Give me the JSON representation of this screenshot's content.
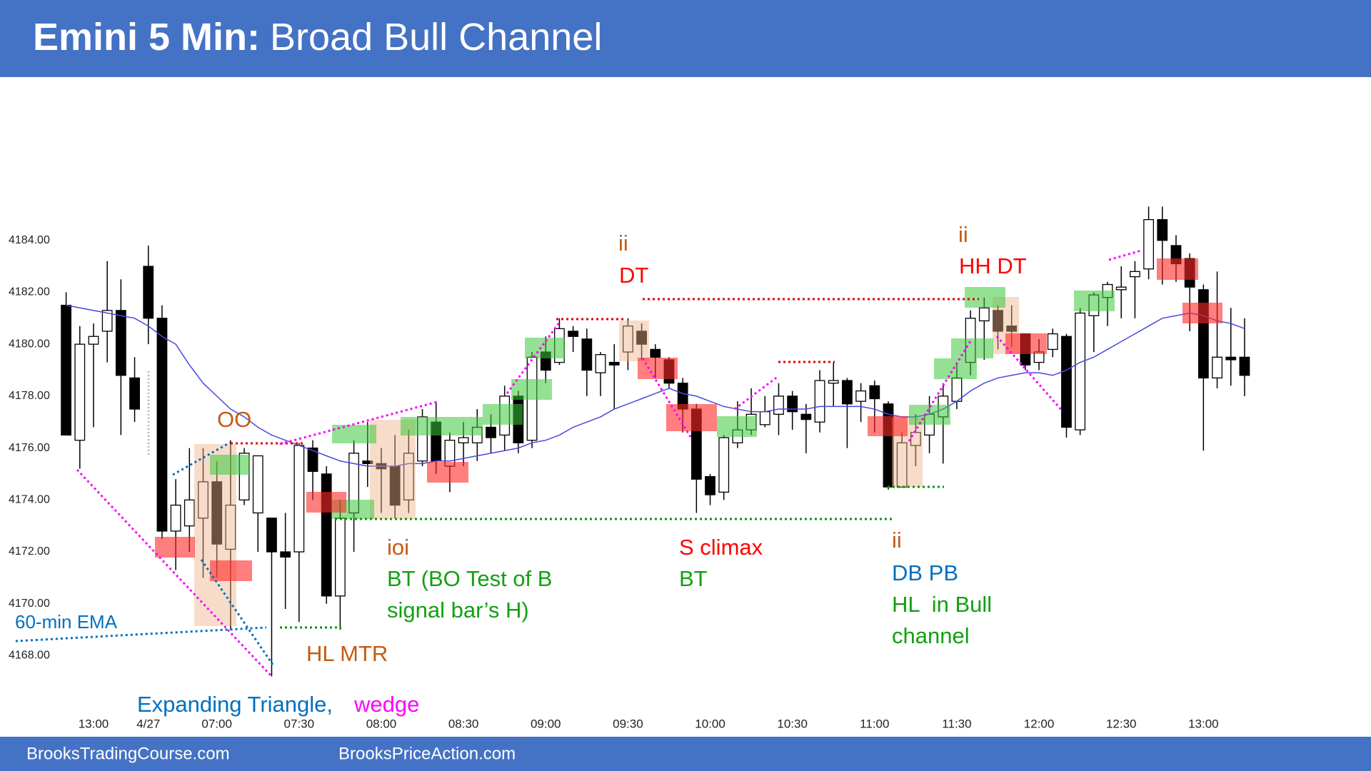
{
  "chart_data": {
    "type": "candlestick",
    "title": "Emini 5 Min:",
    "subtitle": "Broad Bull Channel",
    "footer": [
      "BrooksTradingCourse.com",
      "BrooksPriceAction.com"
    ],
    "categories": [
      null,
      null,
      "13:00",
      null,
      null,
      null,
      "4/27",
      null,
      null,
      null,
      null,
      "07:00",
      null,
      null,
      null,
      null,
      null,
      "07:30",
      null,
      null,
      null,
      null,
      null,
      "08:00",
      null,
      null,
      null,
      null,
      null,
      "08:30",
      null,
      null,
      null,
      null,
      null,
      "09:00",
      null,
      null,
      null,
      null,
      null,
      "09:30",
      null,
      null,
      null,
      null,
      null,
      "10:00",
      null,
      null,
      null,
      null,
      null,
      "10:30",
      null,
      null,
      null,
      null,
      null,
      "11:00",
      null,
      null,
      null,
      null,
      null,
      "11:30",
      null,
      null,
      null,
      null,
      null,
      "12:00",
      null,
      null,
      null,
      null,
      null,
      "12:30",
      null,
      null,
      null,
      null,
      null,
      "13:00",
      null,
      null,
      null
    ],
    "open": [
      4181.5,
      4176.3,
      4180,
      4180.5,
      4181.3,
      4178.7,
      4183,
      4181,
      4172.8,
      4173,
      4173.3,
      4174.7,
      4172.1,
      4174,
      4173.5,
      4173.3,
      4172,
      4172,
      4176,
      4175,
      4170.3,
      4173.5,
      4175.5,
      4175.4,
      4175.3,
      4174,
      4175.5,
      4177,
      4175.3,
      4176.2,
      4176.2,
      4176.8,
      4176.5,
      4178,
      4176.3,
      4179.7,
      4179.3,
      4180.5,
      4180.2,
      4178.9,
      4179.3,
      4179.7,
      4180.5,
      4179.8,
      4179.4,
      4178.5,
      4177.5,
      4174.9,
      4174.3,
      4176.2,
      4176.7,
      4176.9,
      4177.3,
      4178,
      4177.3,
      4177,
      4178.5,
      4178.6,
      4177.8,
      4178.4,
      4177.7,
      4174.5,
      4176.1,
      4176.5,
      4177.2,
      4177.8,
      4179.3,
      4180.9,
      4181.3,
      4180.7,
      4180.4,
      4179.3,
      4179.8,
      4180.3,
      4176.7,
      4181.1,
      4181.8,
      4182.1,
      4182.6,
      4182.9,
      4184.8,
      4183.8,
      4183.3,
      4182.1,
      4178.7,
      4179.5,
      4179.5
    ],
    "high": [
      4182,
      4180.7,
      4180.8,
      4183.2,
      4182.5,
      4179.5,
      4183.8,
      4181.5,
      4174.8,
      4176,
      4176,
      4175.5,
      4176.3,
      4176,
      4175.7,
      4173.3,
      4173.5,
      4176.2,
      4176.3,
      4175.3,
      4174,
      4176.3,
      4177,
      4176,
      4176.5,
      4176.7,
      4177.5,
      4177.8,
      4176.6,
      4177,
      4177.5,
      4177.3,
      4178.4,
      4178.2,
      4179.7,
      4180.3,
      4181,
      4180.7,
      4180.6,
      4179.7,
      4180,
      4181,
      4180.8,
      4180,
      4179.5,
      4178.7,
      4177.7,
      4175,
      4176.5,
      4177.8,
      4178.3,
      4178,
      4178.5,
      4178.2,
      4177.7,
      4179,
      4179.3,
      4178.7,
      4178.5,
      4178.6,
      4177.8,
      4176.6,
      4177.3,
      4178,
      4178.5,
      4179.3,
      4181.3,
      4181.8,
      4181.5,
      4181.5,
      4180.4,
      4180.2,
      4180.6,
      4180.4,
      4181.4,
      4182,
      4182.4,
      4183,
      4183.2,
      4185.3,
      4185.3,
      4184.2,
      4183.5,
      4182.3,
      4182.8,
      4181.4,
      4181
    ],
    "low": [
      4176.5,
      4175.2,
      4176.8,
      4179.3,
      4176.5,
      4177,
      4180,
      4172.5,
      4171.3,
      4172,
      4171,
      4171,
      4169,
      4173.8,
      4172,
      4167.2,
      4169.8,
      4169.3,
      4174,
      4170,
      4169,
      4172,
      4174.5,
      4173.5,
      4173.3,
      4173.5,
      4175.3,
      4175,
      4174.3,
      4175.3,
      4175.5,
      4175.8,
      4175.9,
      4175.8,
      4176,
      4178.5,
      4179.2,
      4179.7,
      4178,
      4178,
      4177.5,
      4179,
      4179.4,
      4178.7,
      4178.3,
      4176.6,
      4173.5,
      4173.8,
      4174,
      4176,
      4176.5,
      4176.8,
      4176.5,
      4176.7,
      4175.8,
      4176.6,
      4177.6,
      4176,
      4177,
      4176.6,
      4174.4,
      4174.5,
      4175.3,
      4175.8,
      4175.4,
      4177.5,
      4178.8,
      4179.4,
      4179.8,
      4179.9,
      4179,
      4179,
      4179.5,
      4176.4,
      4176.5,
      4179.7,
      4180.7,
      4181,
      4181,
      4182.5,
      4182.3,
      4182.4,
      4180.5,
      4175.9,
      4178.3,
      4178.4,
      4178
    ],
    "close": [
      4176.5,
      4180,
      4180.3,
      4181.3,
      4178.8,
      4177.5,
      4181,
      4172.8,
      4173.8,
      4174,
      4174.7,
      4172.3,
      4173.8,
      4175.8,
      4175.7,
      4172,
      4171.8,
      4176.1,
      4175.1,
      4170.3,
      4173.3,
      4175.8,
      4175.4,
      4175.2,
      4173.8,
      4175.8,
      4177.2,
      4175.5,
      4176.3,
      4176.4,
      4176.8,
      4176.4,
      4178,
      4176.2,
      4179.5,
      4179,
      4180.6,
      4180.3,
      4179,
      4179.6,
      4179.2,
      4180.7,
      4180,
      4179.5,
      4178.5,
      4177.5,
      4174.8,
      4174.2,
      4176.4,
      4176.7,
      4177.3,
      4177.4,
      4178,
      4177.4,
      4177.1,
      4178.6,
      4178.6,
      4177.7,
      4178.2,
      4177.9,
      4174.5,
      4176.2,
      4176.6,
      4177.3,
      4178,
      4178.7,
      4181,
      4181.4,
      4180.5,
      4180.5,
      4179.2,
      4179.7,
      4180.4,
      4176.8,
      4181.2,
      4181.9,
      4182.3,
      4182.2,
      4182.8,
      4184.8,
      4184,
      4183.1,
      4182.2,
      4178.7,
      4179.5,
      4179.4,
      4178.8
    ],
    "ema": {
      "name": "60-min EMA",
      "color": "#4848e0",
      "values": [
        4181.5,
        4181.4,
        4181.3,
        4181.2,
        4181.1,
        4181.0,
        4180.7,
        4180.3,
        4180.0,
        4179.2,
        4178.5,
        4178.0,
        4177.5,
        4177.2,
        4176.8,
        4176.5,
        4176.3,
        4176.1,
        4175.9,
        4175.7,
        4175.5,
        4175.4,
        4175.3,
        4175.3,
        4175.3,
        4175.4,
        4175.4,
        4175.5,
        4175.5,
        4175.6,
        4175.7,
        4175.8,
        4175.9,
        4176.0,
        4176.2,
        4176.3,
        4176.5,
        4176.8,
        4177.0,
        4177.2,
        4177.5,
        4177.7,
        4177.9,
        4178.1,
        4178.3,
        4178.1,
        4178.0,
        4177.8,
        4177.6,
        4177.5,
        4177.4,
        4177.4,
        4177.5,
        4177.5,
        4177.5,
        4177.6,
        4177.6,
        4177.6,
        4177.6,
        4177.5,
        4177.3,
        4177.2,
        4177.2,
        4177.3,
        4177.5,
        4177.8,
        4178.2,
        4178.5,
        4178.7,
        4178.8,
        4178.9,
        4178.9,
        4178.8,
        4179.0,
        4179.3,
        4179.5,
        4179.8,
        4180.1,
        4180.4,
        4180.7,
        4181.0,
        4181.1,
        4181.2,
        4181.1,
        4180.9,
        4180.8,
        4180.6
      ]
    },
    "up_color": "#ffffff",
    "down_color": "#000000",
    "ylim": [
      4166.5,
      4186
    ],
    "yticks": [
      {
        "value": 4168,
        "label": "4168.00"
      },
      {
        "value": 4170,
        "label": "4170.00"
      },
      {
        "value": 4172,
        "label": "4172.00"
      },
      {
        "value": 4174,
        "label": "4174.00"
      },
      {
        "value": 4176,
        "label": "4176.00"
      },
      {
        "value": 4178,
        "label": "4178.00"
      },
      {
        "value": 4180,
        "label": "4180.00"
      },
      {
        "value": 4182,
        "label": "4182.00"
      },
      {
        "value": 4184,
        "label": "4184.00"
      }
    ],
    "grid": false,
    "annotations": [
      {
        "text": "OO",
        "color": "#c55a11"
      },
      {
        "text": "ii",
        "color": "#c55a11"
      },
      {
        "text": "DT",
        "color": "#ff0000"
      },
      {
        "text": "ii",
        "color": "#c55a11"
      },
      {
        "text": "HH DT",
        "color": "#ff0000"
      },
      {
        "text": "ioi",
        "color": "#c55a11"
      },
      {
        "text": "BT (BO Test of B",
        "color": "#12a012"
      },
      {
        "text": "signal bar’s H)",
        "color": "#12a012"
      },
      {
        "text": "S climax",
        "color": "#ff0000"
      },
      {
        "text": "BT",
        "color": "#12a012"
      },
      {
        "text": "ii",
        "color": "#c55a11"
      },
      {
        "text": "DB PB",
        "color": "#0070c0"
      },
      {
        "text": "HL  in Bull",
        "color": "#12a012"
      },
      {
        "text": "channel",
        "color": "#12a012"
      },
      {
        "text": "HL MTR",
        "color": "#c55a11"
      },
      {
        "text": "Expanding Triangle,",
        "color": "#0070c0"
      },
      {
        "text": "wedge",
        "color": "#ff00ff"
      }
    ]
  }
}
